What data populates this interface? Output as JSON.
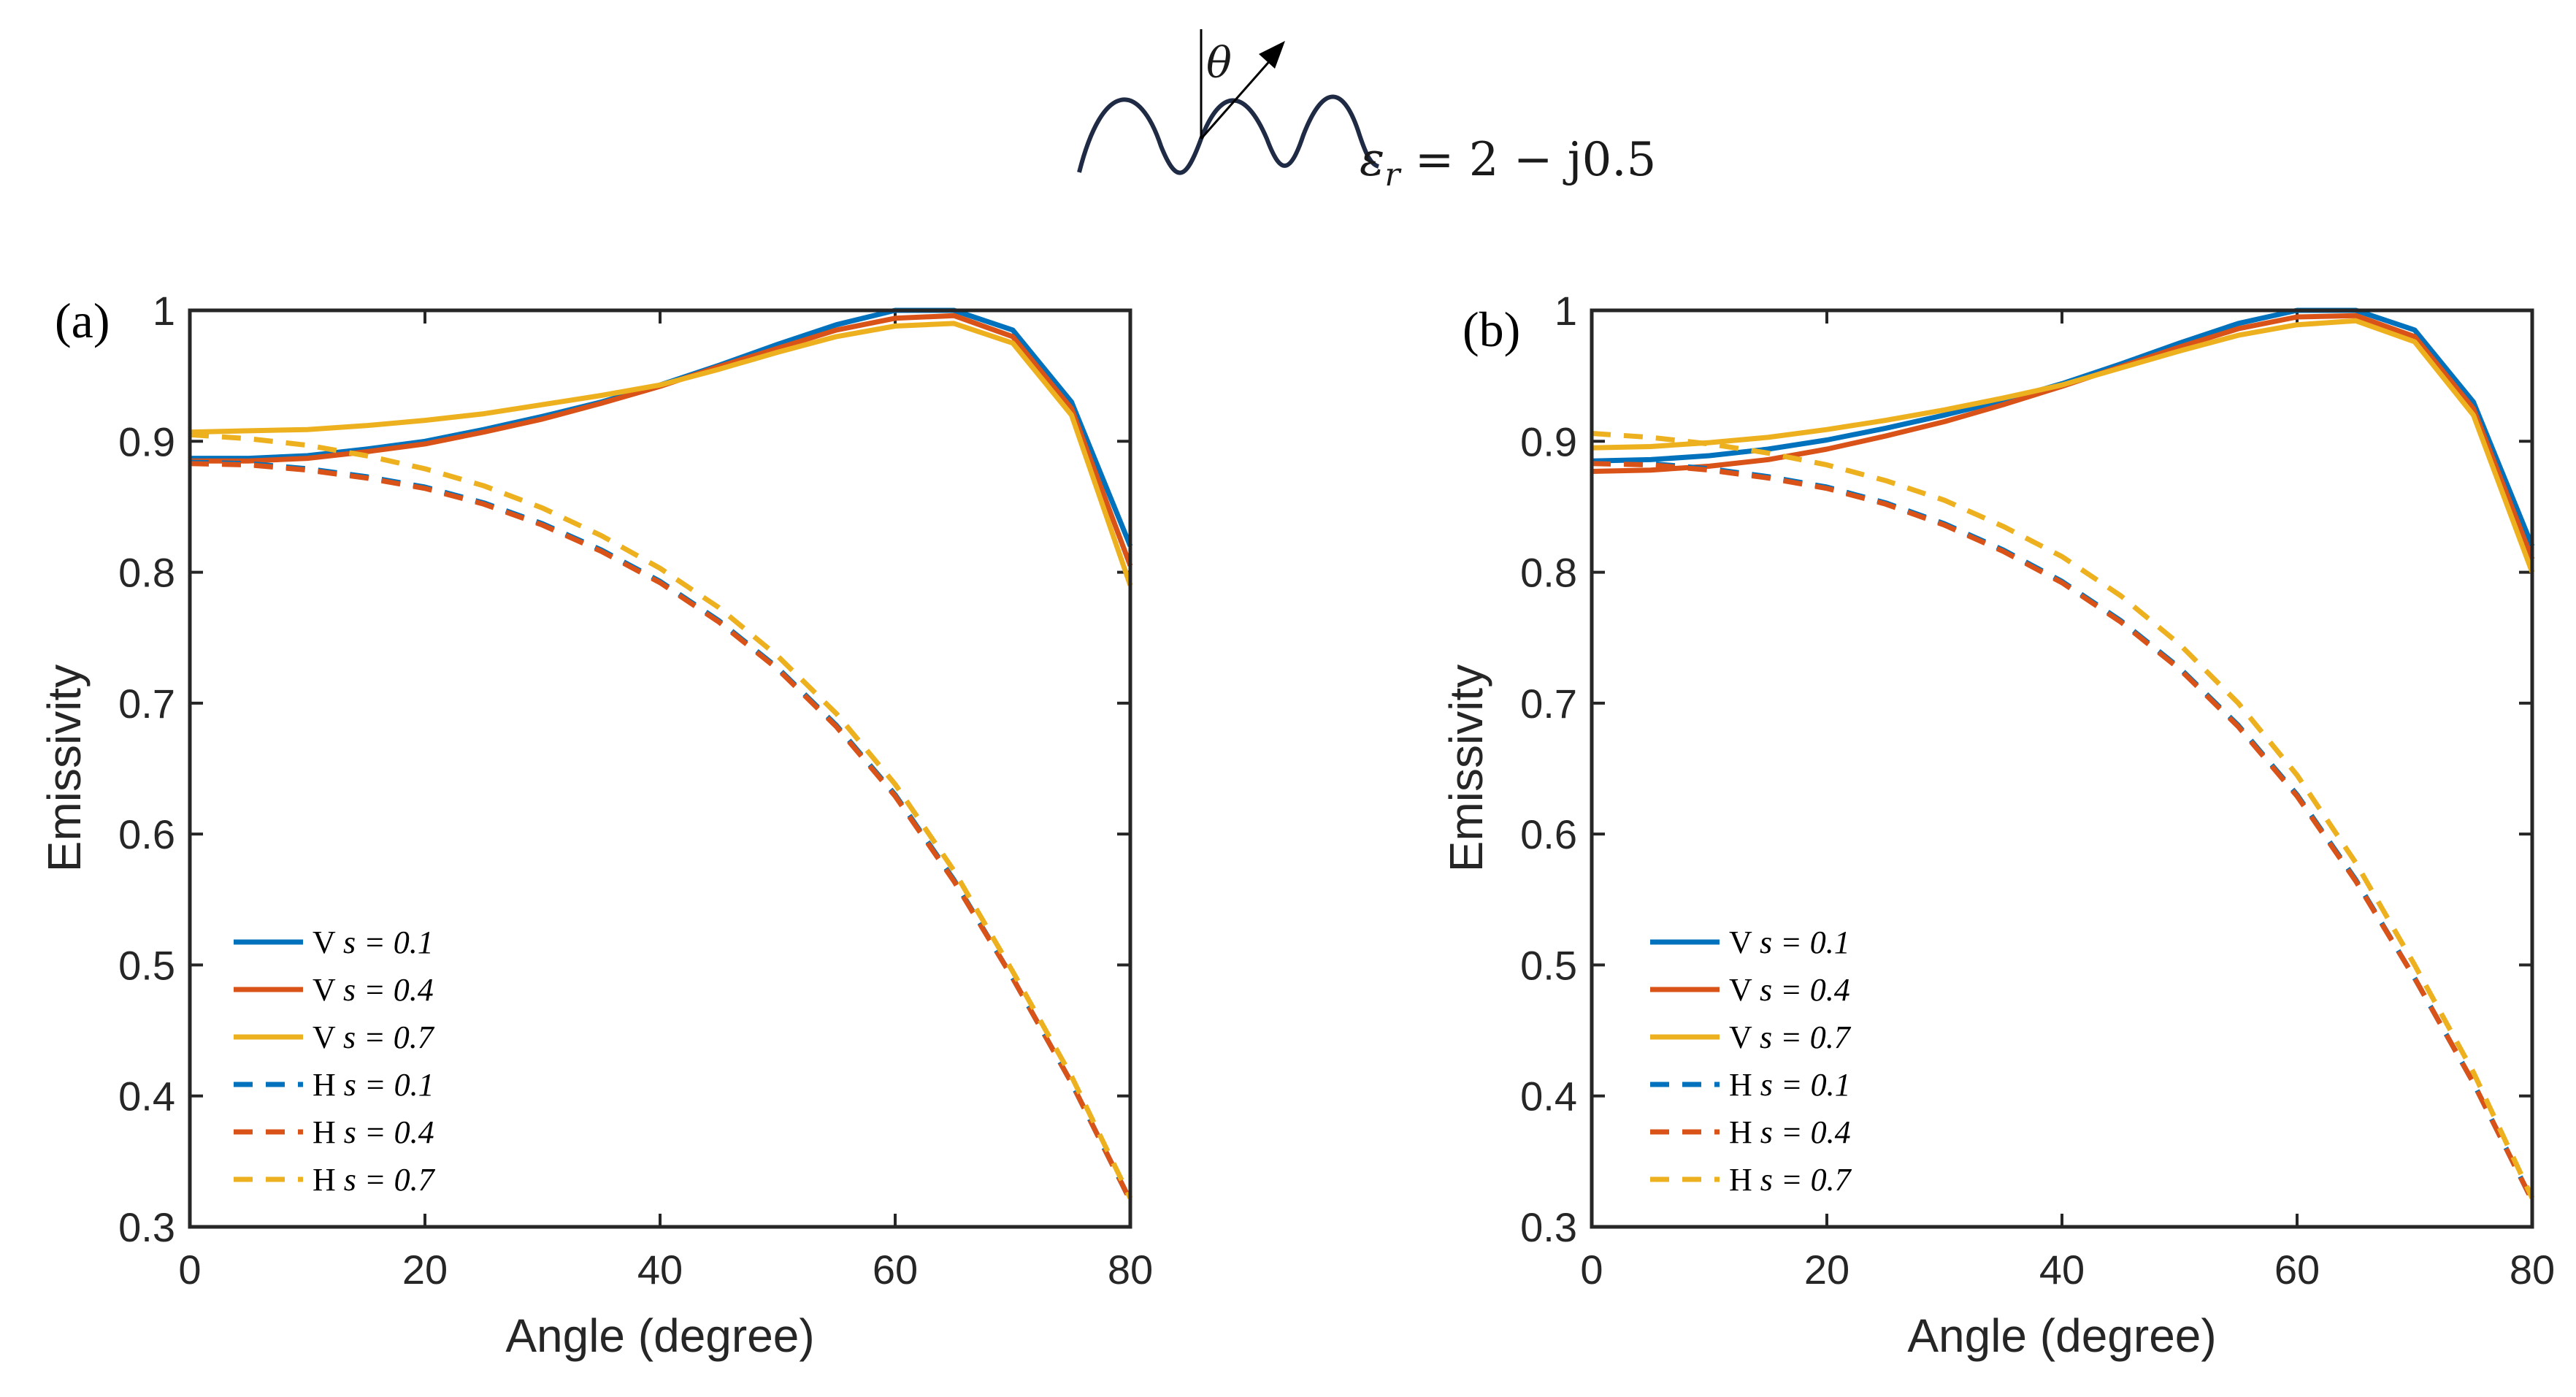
{
  "inset": {
    "angle_symbol": "θ",
    "equation": "εr = 2 − j0.5",
    "equation_eps": "ε",
    "equation_sub": "r",
    "equation_rest": " = 2 − j0.5"
  },
  "colors": {
    "blue": "#0072BD",
    "orange": "#D95319",
    "yellow": "#EDB120",
    "inset_curve": "#1F2A44",
    "axis": "#262626"
  },
  "chart_data": [
    {
      "type": "line",
      "panel_label": "(a)",
      "xlabel": "Angle (degree)",
      "ylabel": "Emissivity",
      "xlim": [
        0,
        80
      ],
      "ylim": [
        0.3,
        1
      ],
      "xticks": [
        "0",
        "20",
        "40",
        "60",
        "80"
      ],
      "yticks": [
        "0.3",
        "0.4",
        "0.5",
        "0.6",
        "0.7",
        "0.8",
        "0.9",
        "1"
      ],
      "x": [
        0,
        5,
        10,
        15,
        20,
        25,
        30,
        35,
        40,
        45,
        50,
        55,
        60,
        65,
        70,
        75,
        80
      ],
      "series": [
        {
          "name": "V s = 0.1",
          "pol": "V",
          "s": "s = 0.1",
          "color": "blue",
          "dash": false,
          "values": [
            0.887,
            0.887,
            0.889,
            0.894,
            0.9,
            0.909,
            0.919,
            0.93,
            0.943,
            0.958,
            0.974,
            0.989,
            1.0,
            1.0,
            0.985,
            0.93,
            0.82
          ]
        },
        {
          "name": "V s = 0.4",
          "pol": "V",
          "s": "s = 0.4",
          "color": "orange",
          "dash": false,
          "values": [
            0.885,
            0.885,
            0.887,
            0.892,
            0.898,
            0.907,
            0.917,
            0.929,
            0.942,
            0.957,
            0.971,
            0.985,
            0.994,
            0.996,
            0.98,
            0.925,
            0.805
          ]
        },
        {
          "name": "V s = 0.7",
          "pol": "V",
          "s": "s = 0.7",
          "color": "yellow",
          "dash": false,
          "values": [
            0.907,
            0.908,
            0.909,
            0.912,
            0.916,
            0.921,
            0.928,
            0.935,
            0.943,
            0.955,
            0.968,
            0.98,
            0.988,
            0.99,
            0.975,
            0.92,
            0.79
          ]
        },
        {
          "name": "H s = 0.1",
          "pol": "H",
          "s": "s = 0.1",
          "color": "blue",
          "dash": true,
          "values": [
            0.884,
            0.883,
            0.879,
            0.873,
            0.865,
            0.853,
            0.837,
            0.817,
            0.793,
            0.763,
            0.727,
            0.683,
            0.63,
            0.565,
            0.49,
            0.41,
            0.32
          ]
        },
        {
          "name": "H s = 0.4",
          "pol": "H",
          "s": "s = 0.4",
          "color": "orange",
          "dash": true,
          "values": [
            0.883,
            0.882,
            0.878,
            0.872,
            0.864,
            0.852,
            0.836,
            0.816,
            0.792,
            0.762,
            0.726,
            0.682,
            0.629,
            0.564,
            0.49,
            0.41,
            0.32
          ]
        },
        {
          "name": "H s = 0.7",
          "pol": "H",
          "s": "s = 0.7",
          "color": "yellow",
          "dash": true,
          "values": [
            0.905,
            0.902,
            0.897,
            0.889,
            0.879,
            0.866,
            0.849,
            0.828,
            0.803,
            0.773,
            0.736,
            0.692,
            0.638,
            0.572,
            0.495,
            0.415,
            0.322
          ]
        }
      ]
    },
    {
      "type": "line",
      "panel_label": "(b)",
      "xlabel": "Angle (degree)",
      "ylabel": "Emissivity",
      "xlim": [
        0,
        80
      ],
      "ylim": [
        0.3,
        1
      ],
      "xticks": [
        "0",
        "20",
        "40",
        "60",
        "80"
      ],
      "yticks": [
        "0.3",
        "0.4",
        "0.5",
        "0.6",
        "0.7",
        "0.8",
        "0.9",
        "1"
      ],
      "x": [
        0,
        5,
        10,
        15,
        20,
        25,
        30,
        35,
        40,
        45,
        50,
        55,
        60,
        65,
        70,
        75,
        80
      ],
      "series": [
        {
          "name": "V s = 0.1",
          "pol": "V",
          "s": "s = 0.1",
          "color": "blue",
          "dash": false,
          "values": [
            0.885,
            0.886,
            0.889,
            0.894,
            0.901,
            0.91,
            0.92,
            0.931,
            0.944,
            0.959,
            0.975,
            0.99,
            1.0,
            1.0,
            0.985,
            0.93,
            0.82
          ]
        },
        {
          "name": "V s = 0.4",
          "pol": "V",
          "s": "s = 0.4",
          "color": "orange",
          "dash": false,
          "values": [
            0.877,
            0.878,
            0.881,
            0.886,
            0.894,
            0.904,
            0.915,
            0.928,
            0.942,
            0.957,
            0.972,
            0.986,
            0.995,
            0.996,
            0.98,
            0.925,
            0.81
          ]
        },
        {
          "name": "V s = 0.7",
          "pol": "V",
          "s": "s = 0.7",
          "color": "yellow",
          "dash": false,
          "values": [
            0.895,
            0.896,
            0.899,
            0.903,
            0.909,
            0.916,
            0.924,
            0.933,
            0.943,
            0.956,
            0.969,
            0.981,
            0.989,
            0.992,
            0.976,
            0.92,
            0.8
          ]
        },
        {
          "name": "H s = 0.1",
          "pol": "H",
          "s": "s = 0.1",
          "color": "blue",
          "dash": true,
          "values": [
            0.884,
            0.883,
            0.879,
            0.873,
            0.865,
            0.853,
            0.837,
            0.817,
            0.793,
            0.763,
            0.727,
            0.683,
            0.63,
            0.565,
            0.49,
            0.41,
            0.32
          ]
        },
        {
          "name": "H s = 0.4",
          "pol": "H",
          "s": "s = 0.4",
          "color": "orange",
          "dash": true,
          "values": [
            0.883,
            0.882,
            0.878,
            0.872,
            0.864,
            0.852,
            0.836,
            0.816,
            0.792,
            0.762,
            0.726,
            0.682,
            0.629,
            0.564,
            0.49,
            0.41,
            0.32
          ]
        },
        {
          "name": "H s = 0.7",
          "pol": "H",
          "s": "s = 0.7",
          "color": "yellow",
          "dash": true,
          "values": [
            0.906,
            0.903,
            0.898,
            0.891,
            0.882,
            0.87,
            0.855,
            0.835,
            0.812,
            0.782,
            0.745,
            0.7,
            0.645,
            0.578,
            0.5,
            0.418,
            0.322
          ]
        }
      ]
    }
  ]
}
